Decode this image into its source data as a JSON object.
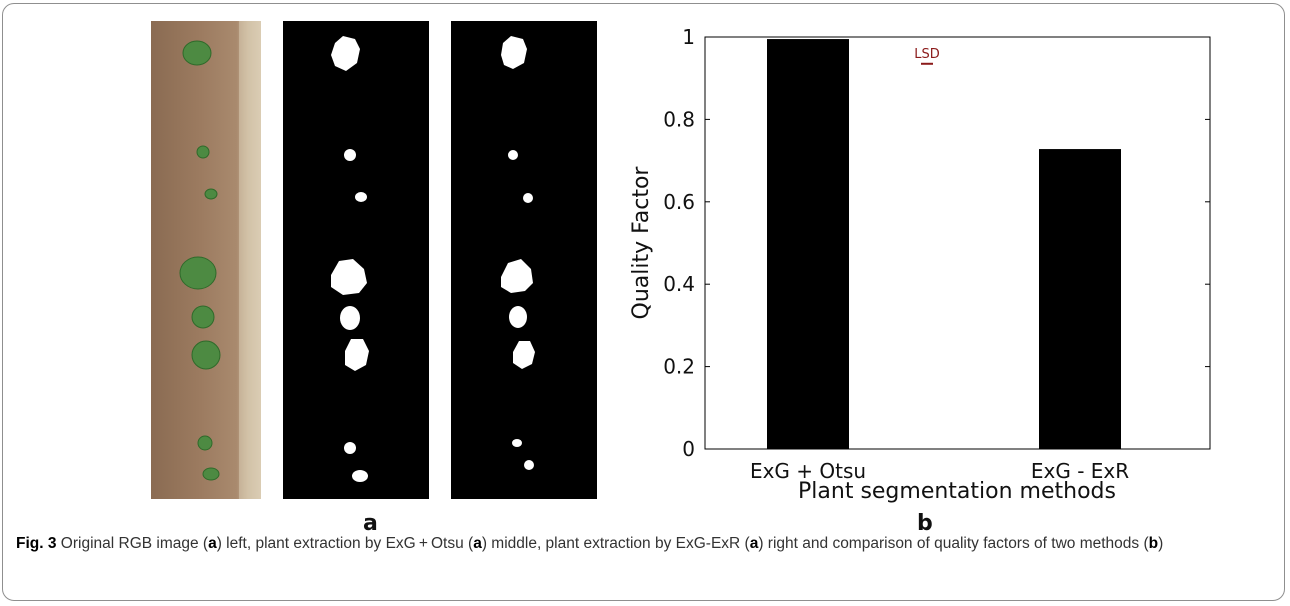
{
  "figure": {
    "panel_a_label": "a",
    "panel_b_label": "b",
    "caption": {
      "fig_label": "Fig. 3",
      "parts": [
        {
          "text": "Original RGB image ("
        },
        {
          "text": "a",
          "bold": true
        },
        {
          "text": ") left, plant extraction by ExG + Otsu ("
        },
        {
          "text": "a",
          "bold": true
        },
        {
          "text": ") middle, plant extraction by ExG-ExR ("
        },
        {
          "text": "a",
          "bold": true
        },
        {
          "text": ") right and comparison of quality factors of two methods ("
        },
        {
          "text": "b",
          "bold": true
        },
        {
          "text": ")"
        }
      ]
    }
  },
  "chart_data": {
    "type": "bar",
    "categories": [
      "ExG + Otsu",
      "ExG - ExR"
    ],
    "values": [
      0.995,
      0.728
    ],
    "xlabel": "Plant segmentation methods",
    "ylabel": "Quality Factor",
    "ylim": [
      0,
      1
    ],
    "yticks": [
      "0",
      "0.2",
      "0.4",
      "0.6",
      "0.8",
      "1"
    ],
    "bar_color": "#000000",
    "annotation": {
      "text": "LSD",
      "value": 0.935,
      "color": "#8b1a1a"
    },
    "grid": false
  }
}
